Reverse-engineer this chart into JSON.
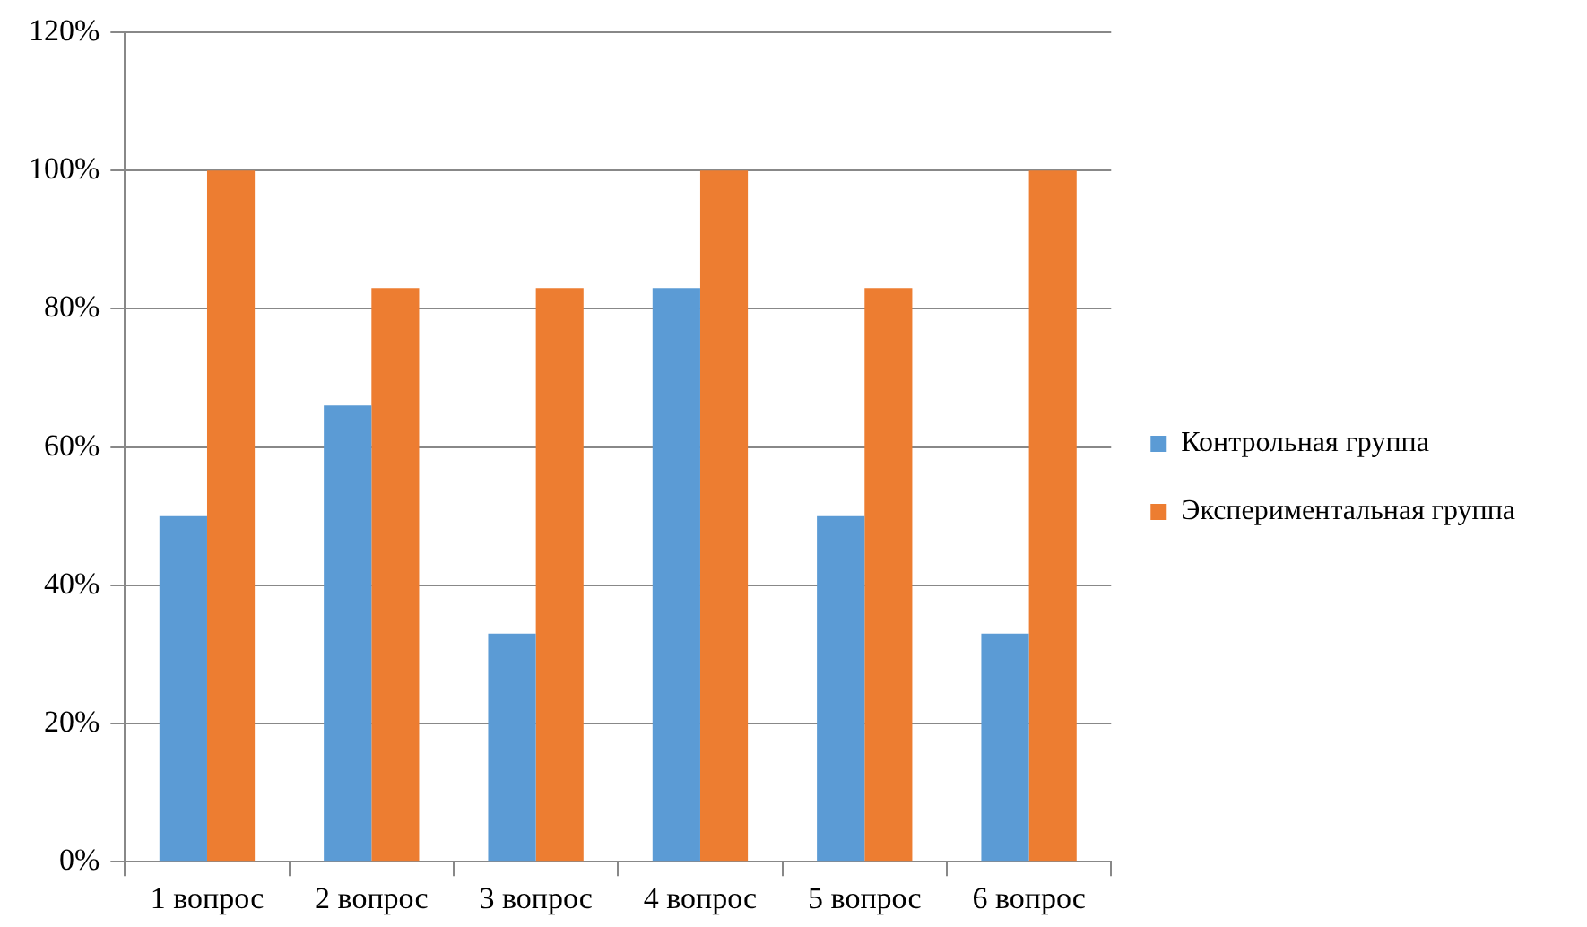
{
  "chart_data": {
    "type": "bar",
    "categories": [
      "1 вопрос",
      "2 вопрос",
      "3 вопрос",
      "4 вопрос",
      "5 вопрос",
      "6 вопрос"
    ],
    "series": [
      {
        "name": "Контрольная группа",
        "color": "#5b9bd5",
        "values": [
          50,
          66,
          33,
          83,
          50,
          33
        ]
      },
      {
        "name": "Экспериментальная группа",
        "color": "#ed7d31",
        "values": [
          100,
          83,
          83,
          100,
          83,
          100
        ]
      }
    ],
    "ylim": [
      0,
      120
    ],
    "yticks": [
      {
        "value": 0,
        "label": "0%"
      },
      {
        "value": 20,
        "label": "20%"
      },
      {
        "value": 40,
        "label": "40%"
      },
      {
        "value": 60,
        "label": "60%"
      },
      {
        "value": 80,
        "label": "80%"
      },
      {
        "value": 100,
        "label": "100%"
      },
      {
        "value": 120,
        "label": "120%"
      }
    ],
    "grid": "y",
    "legend": "right"
  }
}
